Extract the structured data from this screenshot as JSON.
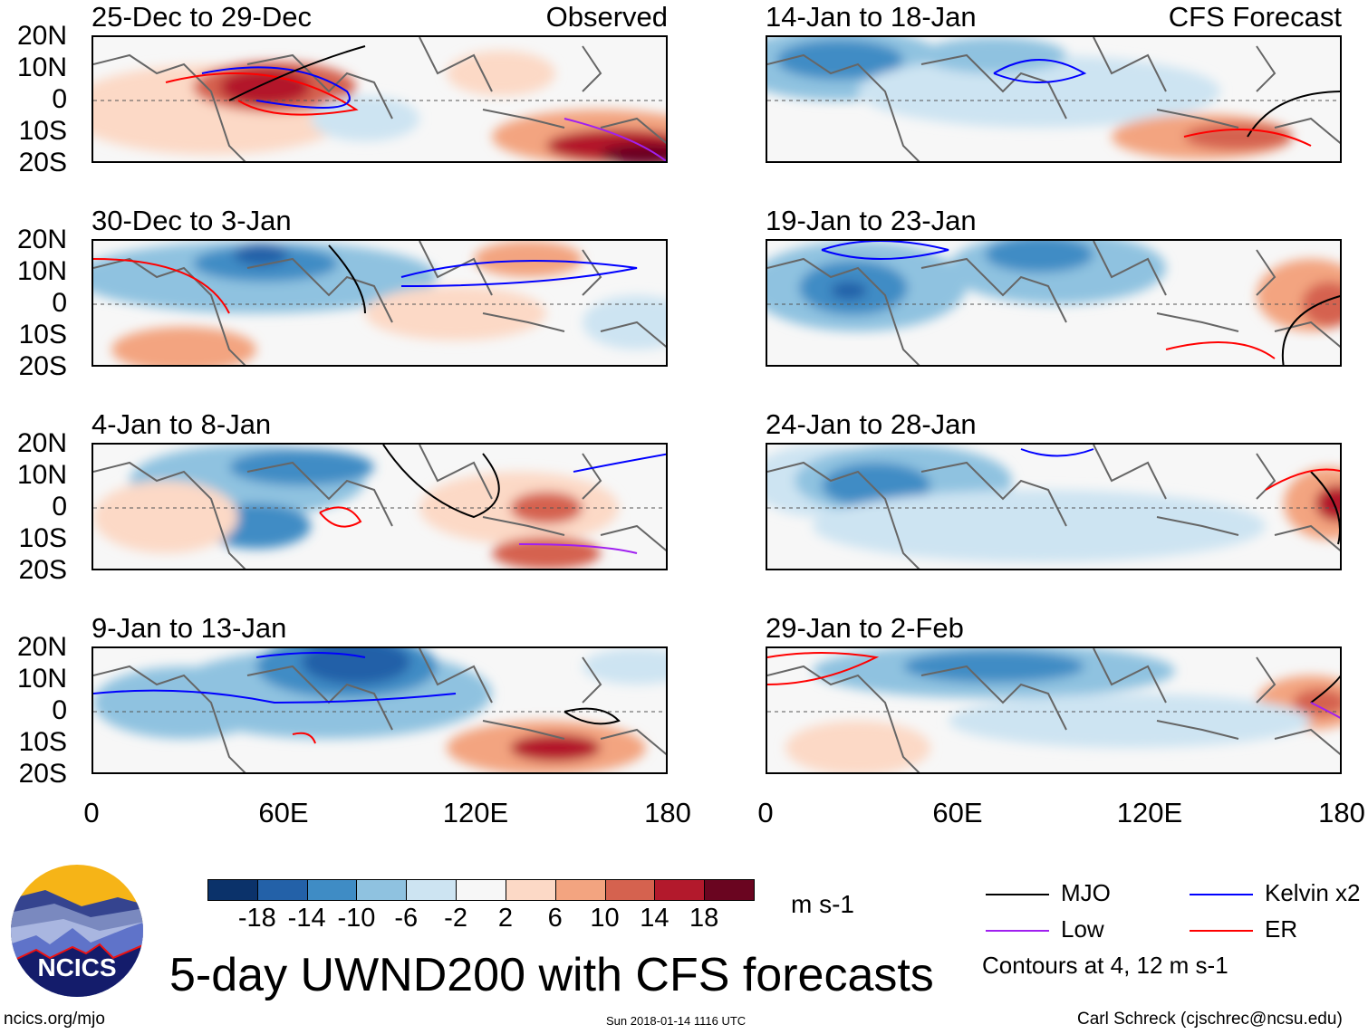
{
  "panels": [
    {
      "title": "25-Dec to 29-Dec",
      "label": "Observed"
    },
    {
      "title": "14-Jan to 18-Jan",
      "label": "CFS Forecast"
    },
    {
      "title": "30-Dec to 3-Jan",
      "label": ""
    },
    {
      "title": "19-Jan to 23-Jan",
      "label": ""
    },
    {
      "title": "4-Jan to 8-Jan",
      "label": ""
    },
    {
      "title": "24-Jan to 28-Jan",
      "label": ""
    },
    {
      "title": "9-Jan to 13-Jan",
      "label": ""
    },
    {
      "title": "29-Jan to 2-Feb",
      "label": ""
    }
  ],
  "y_ticks": [
    "20N",
    "10N",
    "0",
    "10S",
    "20S"
  ],
  "x_ticks": [
    "0",
    "60E",
    "120E",
    "180"
  ],
  "colorbar": {
    "colors": [
      "#0b326a",
      "#2361a8",
      "#3f8cc5",
      "#8fc2e0",
      "#cde4f2",
      "#f7f7f7",
      "#fcd9c6",
      "#f3a480",
      "#d5624f",
      "#b3192c",
      "#6a0520"
    ],
    "labels": [
      "-18",
      "-14",
      "-10",
      "-6",
      "-2",
      "2",
      "6",
      "10",
      "14",
      "18"
    ],
    "units": "m s-1"
  },
  "legend": {
    "items": [
      {
        "label": "MJO",
        "color": "#000000"
      },
      {
        "label": "Kelvin x2",
        "color": "#0000ff"
      },
      {
        "label": "Low",
        "color": "#a020f0"
      },
      {
        "label": "ER",
        "color": "#ff0000"
      }
    ],
    "note": "Contours at 4, 12 m s-1"
  },
  "logo_text": "NCICS",
  "title": "5-day UWND200 with CFS forecasts",
  "footer": {
    "left": "ncics.org/mjo",
    "center": "Sun 2018-01-14 1116 UTC",
    "right": "Carl Schreck (cjschrec@ncsu.edu)"
  }
}
